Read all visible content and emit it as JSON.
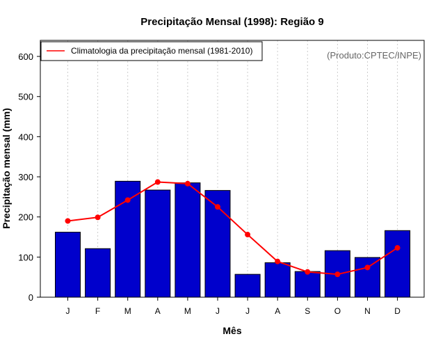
{
  "chart_data": {
    "type": "bar",
    "title": "Precipitação Mensal (1998): Região 9",
    "xlabel": "Mês",
    "ylabel": "Precipitação mensal (mm)",
    "ylim": [
      0,
      640
    ],
    "yticks": [
      0,
      100,
      200,
      300,
      400,
      500,
      600
    ],
    "categories": [
      "J",
      "F",
      "M",
      "A",
      "M",
      "J",
      "J",
      "A",
      "S",
      "O",
      "N",
      "D"
    ],
    "series": [
      {
        "name": "Precipitação mensal (1998)",
        "type": "bar",
        "color": "#0000CC",
        "values": [
          162,
          121,
          289,
          267,
          285,
          266,
          57,
          86,
          64,
          116,
          99,
          166
        ]
      },
      {
        "name": "Climatologia da precipitação mensal (1981-2010)",
        "type": "line",
        "color": "#FF0000",
        "values": [
          190,
          199,
          242,
          287,
          283,
          225,
          156,
          89,
          63,
          57,
          74,
          123
        ]
      }
    ],
    "legend": {
      "placement": "top-left",
      "label": "Climatologia da precipitação mensal (1981-2010)"
    },
    "credit": "(Produto:CPTEC/INPE)",
    "grid": "vertical-dotted"
  }
}
